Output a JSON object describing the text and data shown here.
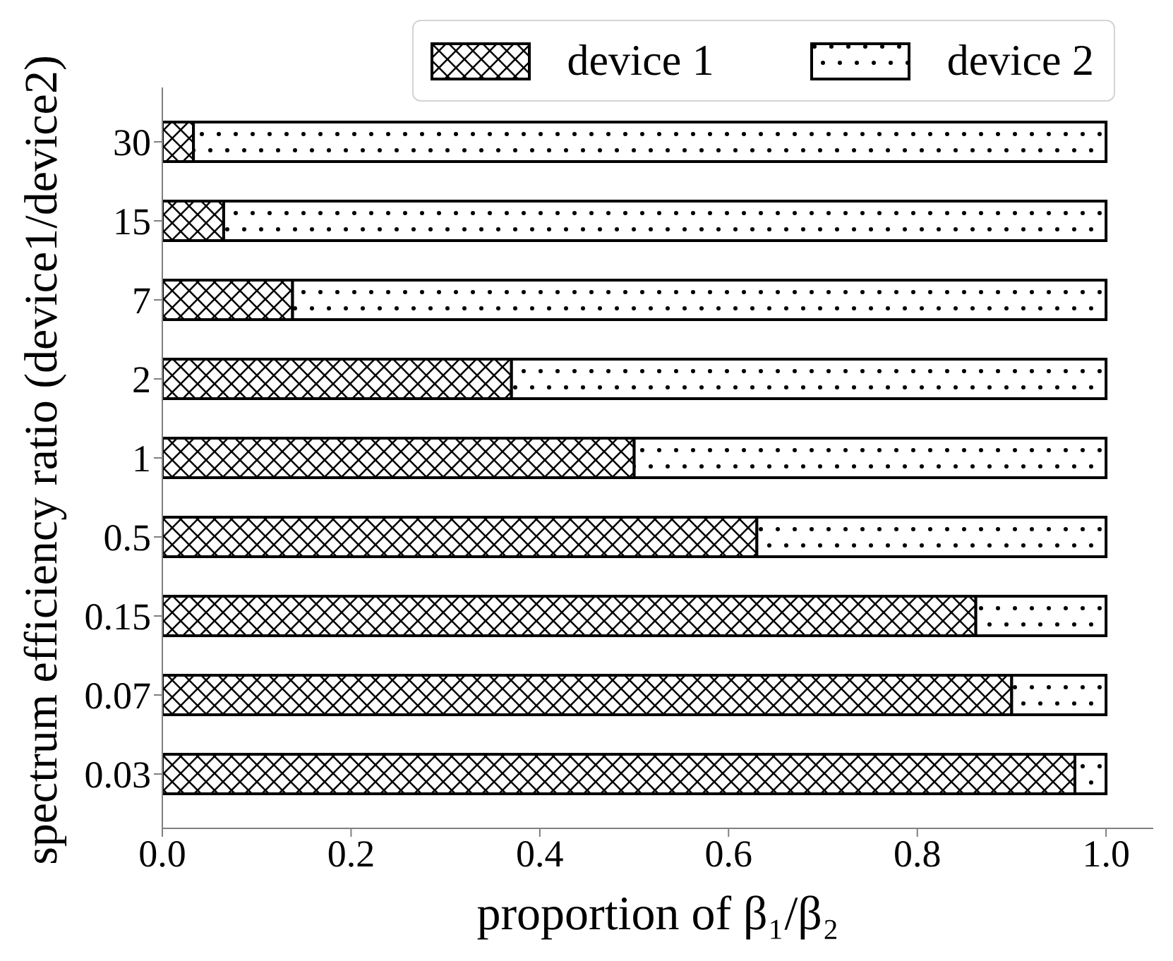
{
  "chart_data": {
    "type": "bar",
    "orientation": "horizontal",
    "stacked": true,
    "categories": [
      "30",
      "15",
      "7",
      "2",
      "1",
      "0.5",
      "0.15",
      "0.07",
      "0.03"
    ],
    "series": [
      {
        "name": "device 1",
        "color": "#000000",
        "values": [
          0.033,
          0.065,
          0.138,
          0.37,
          0.5,
          0.63,
          0.862,
          0.9,
          0.967
        ]
      },
      {
        "name": "device 2",
        "color": "#000000",
        "values": [
          0.967,
          0.935,
          0.862,
          0.63,
          0.5,
          0.37,
          0.138,
          0.1,
          0.033
        ]
      }
    ],
    "xlim": [
      0,
      1.05
    ],
    "xticks": [
      {
        "value": 0,
        "label": "0.0"
      },
      0.2,
      0.4,
      0.6,
      0.8,
      {
        "value": 1,
        "label": "1.0"
      }
    ],
    "xlabel": "proportion of β₁/β₂",
    "ylabel": "spectrum efficiency ratio (device1/device2)",
    "legend": "top right"
  }
}
